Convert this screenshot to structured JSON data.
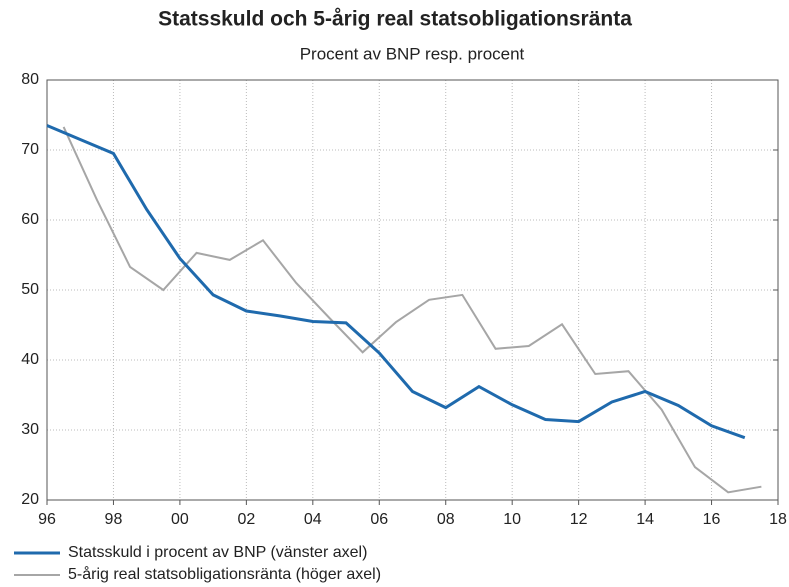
{
  "chart_data": {
    "type": "line",
    "title": "Statsskuld och 5-årig real statsobligationsränta",
    "subtitle": "Procent av BNP resp. procent",
    "xlim": [
      1996,
      2018
    ],
    "xticks": [
      {
        "value": 1996,
        "label": "96"
      },
      {
        "value": 1998,
        "label": "98"
      },
      {
        "value": 2000,
        "label": "00"
      },
      {
        "value": 2002,
        "label": "02"
      },
      {
        "value": 2004,
        "label": "04"
      },
      {
        "value": 2006,
        "label": "06"
      },
      {
        "value": 2008,
        "label": "08"
      },
      {
        "value": 2010,
        "label": "10"
      },
      {
        "value": 2012,
        "label": "12"
      },
      {
        "value": 2014,
        "label": "14"
      },
      {
        "value": 2016,
        "label": "16"
      },
      {
        "value": 2018,
        "label": "18"
      }
    ],
    "ylim": [
      20,
      80
    ],
    "yticks": [
      20,
      30,
      40,
      50,
      60,
      70,
      80
    ],
    "grid": true,
    "legend": "bottom",
    "series": [
      {
        "name": "Statsskuld i procent av BNP (vänster axel)",
        "color": "#1f6aad",
        "x": [
          1996,
          1997,
          1998,
          1999,
          2000,
          2001,
          2002,
          2003,
          2004,
          2005,
          2006,
          2007,
          2008,
          2009,
          2010,
          2011,
          2012,
          2013,
          2014,
          2015,
          2016,
          2017
        ],
        "values": [
          73.5,
          71.5,
          69.5,
          61.5,
          54.5,
          49.3,
          47,
          46.3,
          45.5,
          45.3,
          41,
          35.5,
          33.2,
          36.2,
          33.6,
          31.5,
          31.2,
          34,
          35.5,
          33.5,
          30.6,
          28.9
        ]
      },
      {
        "name": "5-årig real statsobligationsränta (höger axel)",
        "color": "#a6a6a6",
        "x": [
          1996.5,
          1997.5,
          1998.5,
          1999.5,
          2000.5,
          2001.5,
          2002.5,
          2003.5,
          2004.5,
          2005.5,
          2006.5,
          2007.5,
          2008.5,
          2009.5,
          2010.5,
          2011.5,
          2012.5,
          2013.5,
          2014.5,
          2015.5,
          2016.5,
          2017.5
        ],
        "values": [
          73.3,
          62.9,
          53.3,
          50,
          55.3,
          54.3,
          57.1,
          51,
          46,
          41.1,
          45.4,
          48.6,
          49.3,
          41.6,
          42,
          45.1,
          38,
          38.4,
          32.9,
          24.7,
          21.1,
          21.9
        ]
      }
    ]
  }
}
